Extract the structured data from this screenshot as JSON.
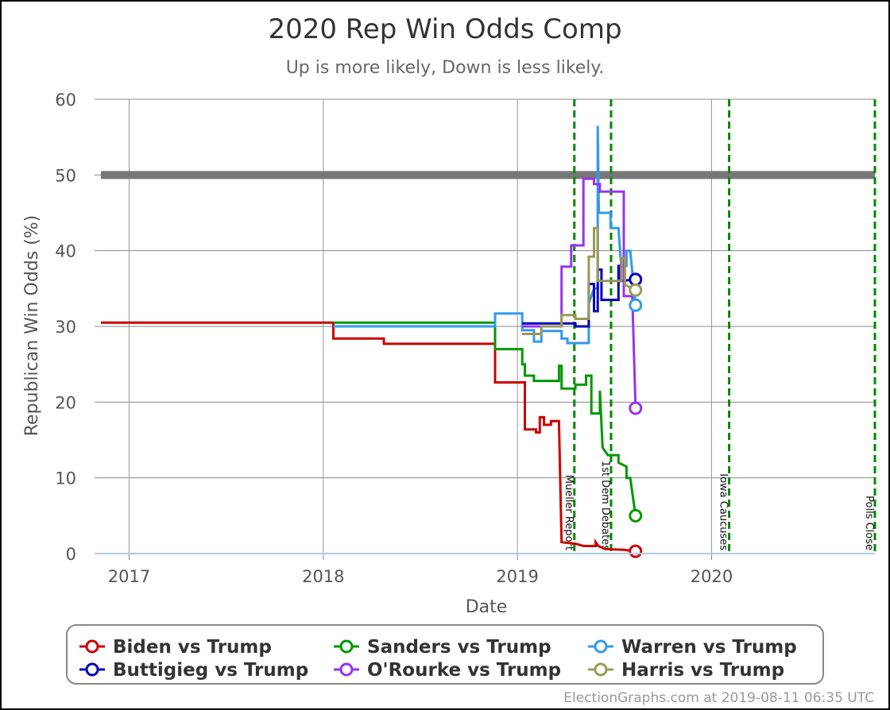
{
  "chart_data": {
    "type": "line",
    "title": "2020 Rep Win Odds Comp",
    "subtitle": "Up is more likely, Down is less likely.",
    "xlabel": "Date",
    "ylabel": "Republican Win Odds (%)",
    "xlim": [
      "2016-11-09",
      "2020-11-03"
    ],
    "ylim": [
      0,
      60
    ],
    "x_ticks": [
      "2017",
      "2018",
      "2019",
      "2020"
    ],
    "x_tick_dates": [
      "2017-01-01",
      "2018-01-01",
      "2019-01-01",
      "2020-01-01"
    ],
    "y_ticks": [
      0,
      10,
      20,
      30,
      40,
      50,
      60
    ],
    "grid": true,
    "reference_line": 50,
    "legend_position": "bottom",
    "event_lines": [
      {
        "date": "2019-04-18",
        "label": "Mueller Report"
      },
      {
        "date": "2019-06-26",
        "label": "1st Dem Debates"
      },
      {
        "date": "2020-02-03",
        "label": "Iowa Caucuses"
      },
      {
        "date": "2020-11-03",
        "label": "Polls Close"
      }
    ],
    "series": [
      {
        "name": "Biden vs Trump",
        "color": "#cc0000",
        "points": [
          [
            "2016-11-09",
            30.5
          ],
          [
            "2018-01-20",
            30.5
          ],
          [
            "2018-01-20",
            28.4
          ],
          [
            "2018-04-25",
            28.4
          ],
          [
            "2018-04-25",
            27.7
          ],
          [
            "2018-11-20",
            27.7
          ],
          [
            "2018-11-20",
            22.6
          ],
          [
            "2019-01-15",
            22.6
          ],
          [
            "2019-01-15",
            16.4
          ],
          [
            "2019-02-05",
            16.4
          ],
          [
            "2019-02-05",
            16.0
          ],
          [
            "2019-02-12",
            16.0
          ],
          [
            "2019-02-12",
            18.0
          ],
          [
            "2019-02-20",
            18.0
          ],
          [
            "2019-02-20",
            17.0
          ],
          [
            "2019-03-05",
            17.0
          ],
          [
            "2019-03-05",
            17.5
          ],
          [
            "2019-03-20",
            17.5
          ],
          [
            "2019-03-25",
            1.5
          ],
          [
            "2019-04-20",
            1.3
          ],
          [
            "2019-05-05",
            1.0
          ],
          [
            "2019-05-28",
            1.0
          ],
          [
            "2019-05-28",
            1.5
          ],
          [
            "2019-06-02",
            1.0
          ],
          [
            "2019-06-15",
            0.6
          ],
          [
            "2019-07-20",
            0.5
          ],
          [
            "2019-08-11",
            0.3
          ]
        ],
        "end": 0.3
      },
      {
        "name": "Sanders vs Trump",
        "color": "#009900",
        "points": [
          [
            "2018-01-20",
            30.5
          ],
          [
            "2018-11-20",
            30.5
          ],
          [
            "2018-11-20",
            27.0
          ],
          [
            "2019-01-10",
            27.0
          ],
          [
            "2019-01-10",
            25.0
          ],
          [
            "2019-01-15",
            25.0
          ],
          [
            "2019-01-15",
            23.5
          ],
          [
            "2019-02-01",
            23.5
          ],
          [
            "2019-02-01",
            22.8
          ],
          [
            "2019-03-20",
            22.8
          ],
          [
            "2019-03-20",
            24.8
          ],
          [
            "2019-03-25",
            24.8
          ],
          [
            "2019-03-25",
            21.8
          ],
          [
            "2019-04-20",
            21.8
          ],
          [
            "2019-04-20",
            22.3
          ],
          [
            "2019-05-10",
            22.3
          ],
          [
            "2019-05-10",
            23.5
          ],
          [
            "2019-05-20",
            23.5
          ],
          [
            "2019-05-20",
            18.5
          ],
          [
            "2019-06-05",
            18.5
          ],
          [
            "2019-06-05",
            21.5
          ],
          [
            "2019-06-10",
            14.0
          ],
          [
            "2019-06-20",
            13.0
          ],
          [
            "2019-07-10",
            13.0
          ],
          [
            "2019-07-10",
            12.0
          ],
          [
            "2019-07-25",
            11.5
          ],
          [
            "2019-07-25",
            10.0
          ],
          [
            "2019-08-01",
            10.0
          ],
          [
            "2019-08-11",
            5.0
          ]
        ],
        "end": 5.0
      },
      {
        "name": "Warren vs Trump",
        "color": "#3399ee",
        "points": [
          [
            "2018-01-20",
            30.0
          ],
          [
            "2018-11-20",
            30.0
          ],
          [
            "2018-11-20",
            31.7
          ],
          [
            "2019-01-10",
            31.7
          ],
          [
            "2019-01-10",
            29.5
          ],
          [
            "2019-02-01",
            29.5
          ],
          [
            "2019-02-01",
            28.0
          ],
          [
            "2019-02-15",
            28.0
          ],
          [
            "2019-02-15",
            29.4
          ],
          [
            "2019-03-25",
            29.4
          ],
          [
            "2019-03-25",
            28.4
          ],
          [
            "2019-04-05",
            28.4
          ],
          [
            "2019-04-05",
            27.8
          ],
          [
            "2019-05-15",
            27.8
          ],
          [
            "2019-05-15",
            33.0
          ],
          [
            "2019-05-25",
            35.0
          ],
          [
            "2019-06-01",
            35.0
          ],
          [
            "2019-06-01",
            56.5
          ],
          [
            "2019-06-03",
            45.0
          ],
          [
            "2019-06-25",
            45.0
          ],
          [
            "2019-06-25",
            43.0
          ],
          [
            "2019-07-10",
            43.0
          ],
          [
            "2019-07-15",
            38.0
          ],
          [
            "2019-07-25",
            38.0
          ],
          [
            "2019-07-25",
            40.0
          ],
          [
            "2019-08-01",
            40.0
          ],
          [
            "2019-08-11",
            32.8
          ]
        ],
        "end": 32.8
      },
      {
        "name": "Buttigieg vs Trump",
        "color": "#0000bb",
        "points": [
          [
            "2019-01-10",
            30.4
          ],
          [
            "2019-04-20",
            30.4
          ],
          [
            "2019-04-20",
            30.0
          ],
          [
            "2019-05-15",
            30.0
          ],
          [
            "2019-05-15",
            35.6
          ],
          [
            "2019-05-25",
            35.6
          ],
          [
            "2019-05-25",
            32.0
          ],
          [
            "2019-06-01",
            32.0
          ],
          [
            "2019-06-01",
            37.5
          ],
          [
            "2019-06-08",
            37.5
          ],
          [
            "2019-06-08",
            33.5
          ],
          [
            "2019-07-10",
            33.5
          ],
          [
            "2019-07-10",
            38.0
          ],
          [
            "2019-07-14",
            38.0
          ],
          [
            "2019-07-14",
            36.0
          ],
          [
            "2019-08-11",
            36.2
          ]
        ],
        "end": 36.2
      },
      {
        "name": "O'Rourke vs Trump",
        "color": "#9933ee",
        "points": [
          [
            "2019-01-10",
            30.0
          ],
          [
            "2019-03-25",
            30.0
          ],
          [
            "2019-03-25",
            37.9
          ],
          [
            "2019-04-12",
            37.9
          ],
          [
            "2019-04-12",
            40.7
          ],
          [
            "2019-05-05",
            40.7
          ],
          [
            "2019-05-05",
            49.5
          ],
          [
            "2019-05-25",
            49.5
          ],
          [
            "2019-05-25",
            48.8
          ],
          [
            "2019-06-05",
            48.8
          ],
          [
            "2019-06-05",
            47.8
          ],
          [
            "2019-07-20",
            47.8
          ],
          [
            "2019-07-20",
            34.0
          ],
          [
            "2019-08-05",
            34.0
          ],
          [
            "2019-08-11",
            19.2
          ]
        ],
        "end": 19.2
      },
      {
        "name": "Harris vs Trump",
        "color": "#999955",
        "points": [
          [
            "2019-01-10",
            29.0
          ],
          [
            "2019-02-15",
            29.0
          ],
          [
            "2019-02-15",
            30.0
          ],
          [
            "2019-03-25",
            30.0
          ],
          [
            "2019-03-25",
            31.5
          ],
          [
            "2019-04-20",
            31.5
          ],
          [
            "2019-04-20",
            31.0
          ],
          [
            "2019-05-15",
            31.0
          ],
          [
            "2019-05-15",
            39.2
          ],
          [
            "2019-05-25",
            39.2
          ],
          [
            "2019-05-25",
            43.0
          ],
          [
            "2019-06-01",
            43.0
          ],
          [
            "2019-06-01",
            36.0
          ],
          [
            "2019-07-15",
            36.0
          ],
          [
            "2019-07-15",
            39.0
          ],
          [
            "2019-07-22",
            39.0
          ],
          [
            "2019-07-22",
            35.5
          ],
          [
            "2019-08-11",
            34.8
          ]
        ],
        "end": 34.8
      }
    ]
  },
  "legend": {
    "row1": [
      "Biden vs Trump",
      "Sanders vs Trump",
      "Warren vs Trump"
    ],
    "row2": [
      "Buttigieg vs Trump",
      "O'Rourke vs Trump",
      "Harris vs Trump"
    ]
  },
  "footer": "ElectionGraphs.com at 2019-08-11 06:35 UTC"
}
